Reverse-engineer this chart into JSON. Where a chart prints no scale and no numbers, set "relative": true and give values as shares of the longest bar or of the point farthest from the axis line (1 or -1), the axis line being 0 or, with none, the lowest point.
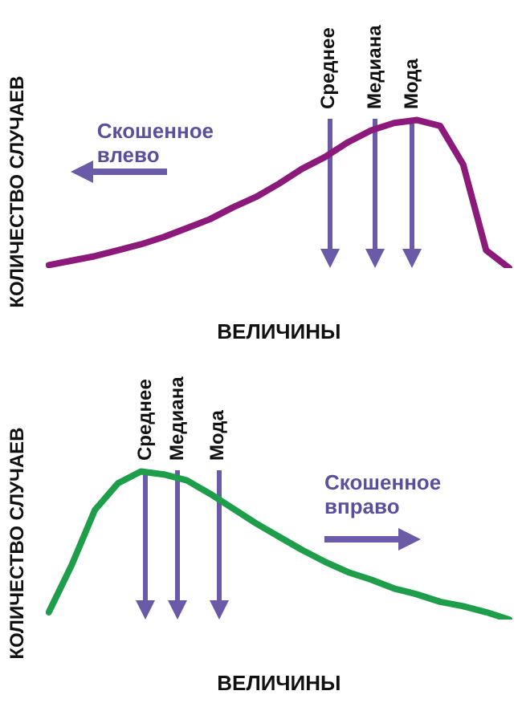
{
  "chart_data": [
    {
      "type": "line",
      "xlabel": "ВЕЛИЧИНЫ",
      "ylabel": "КОЛИЧЕСТВО СЛУЧАЕВ",
      "relative": true,
      "grid": false,
      "legend": false,
      "marker": "none",
      "annotations": [
        "Среднее",
        "Медиана",
        "Мода",
        "Скошенное влево"
      ],
      "categories": [
        null,
        null,
        null,
        null,
        null,
        null,
        null,
        null,
        null,
        null,
        null,
        null,
        null,
        null,
        null,
        null,
        null,
        null,
        null,
        null,
        null
      ],
      "series": [
        {
          "color": "#8b1a7a",
          "values": [
            0.02,
            0.05,
            0.08,
            0.12,
            0.16,
            0.21,
            0.27,
            0.33,
            0.41,
            0.48,
            0.57,
            0.67,
            0.75,
            0.85,
            0.93,
            0.98,
            1,
            0.96,
            0.7,
            0.12,
            0
          ]
        }
      ]
    },
    {
      "type": "line",
      "xlabel": "ВЕЛИЧИНЫ",
      "ylabel": "КОЛИЧЕСТВО СЛУЧАЕВ",
      "relative": true,
      "grid": false,
      "legend": false,
      "marker": "none",
      "annotations": [
        "Среднее",
        "Медиана",
        "Мода",
        "Скошенное вправо"
      ],
      "categories": [
        null,
        null,
        null,
        null,
        null,
        null,
        null,
        null,
        null,
        null,
        null,
        null,
        null,
        null,
        null,
        null,
        null,
        null,
        null,
        null,
        null
      ],
      "series": [
        {
          "color": "#1e9e4a",
          "values": [
            0.05,
            0.37,
            0.74,
            0.92,
            1,
            0.98,
            0.94,
            0.85,
            0.75,
            0.65,
            0.56,
            0.47,
            0.39,
            0.32,
            0.27,
            0.21,
            0.17,
            0.12,
            0.09,
            0.05,
            0
          ]
        }
      ]
    }
  ]
}
